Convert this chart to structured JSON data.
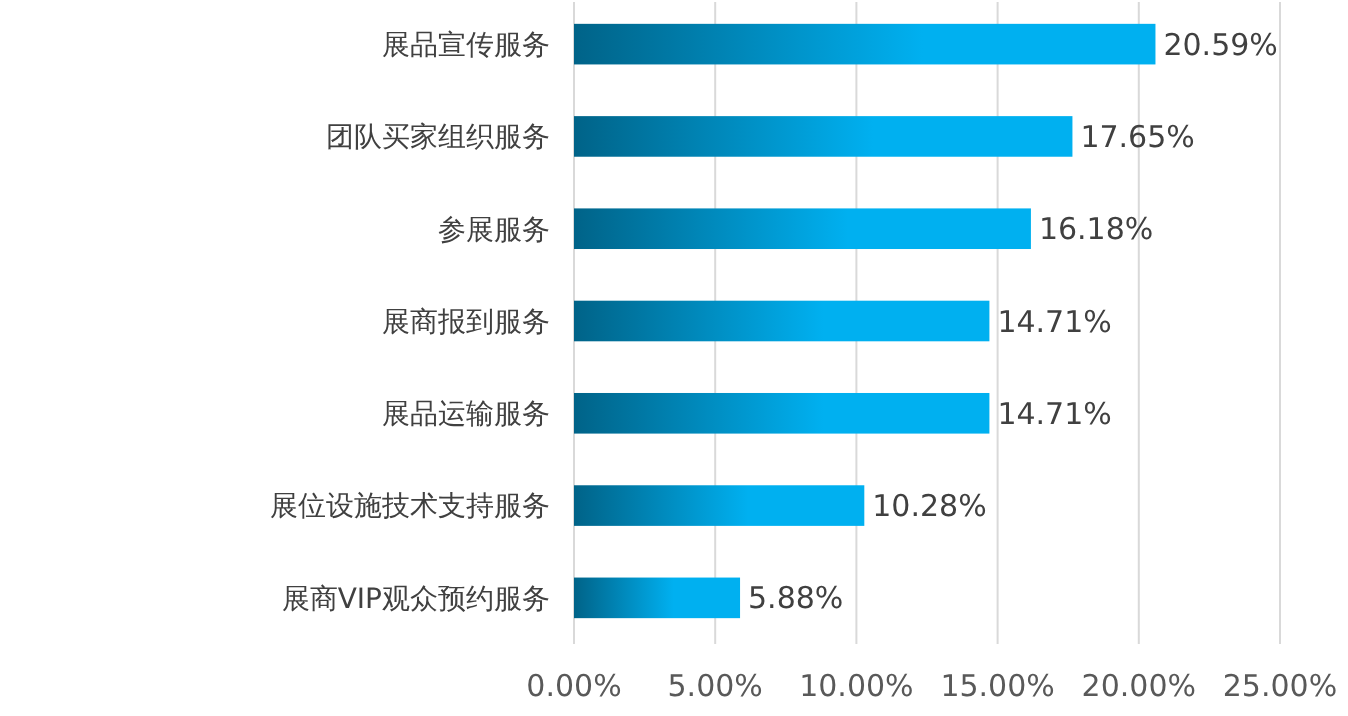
{
  "chart_data": {
    "type": "bar",
    "orientation": "horizontal",
    "categories": [
      "展品宣传服务",
      "团队买家组织服务",
      "参展服务",
      "展商报到服务",
      "展品运输服务",
      "展位设施技术支持服务",
      "展商VIP观众预约服务"
    ],
    "values": [
      20.59,
      17.65,
      16.18,
      14.71,
      14.71,
      10.28,
      5.88
    ],
    "value_labels": [
      "20.59%",
      "17.65%",
      "16.18%",
      "14.71%",
      "14.71%",
      "10.28%",
      "5.88%"
    ],
    "color": "#00b0f0",
    "xlim": [
      0,
      25
    ],
    "xticks": [
      {
        "value": 0,
        "label": "0.00%"
      },
      {
        "value": 5,
        "label": "5.00%"
      },
      {
        "value": 10,
        "label": "10.00%"
      },
      {
        "value": 15,
        "label": "15.00%"
      },
      {
        "value": 20,
        "label": "20.00%"
      },
      {
        "value": 25,
        "label": "25.00%"
      }
    ],
    "grid": "x"
  }
}
